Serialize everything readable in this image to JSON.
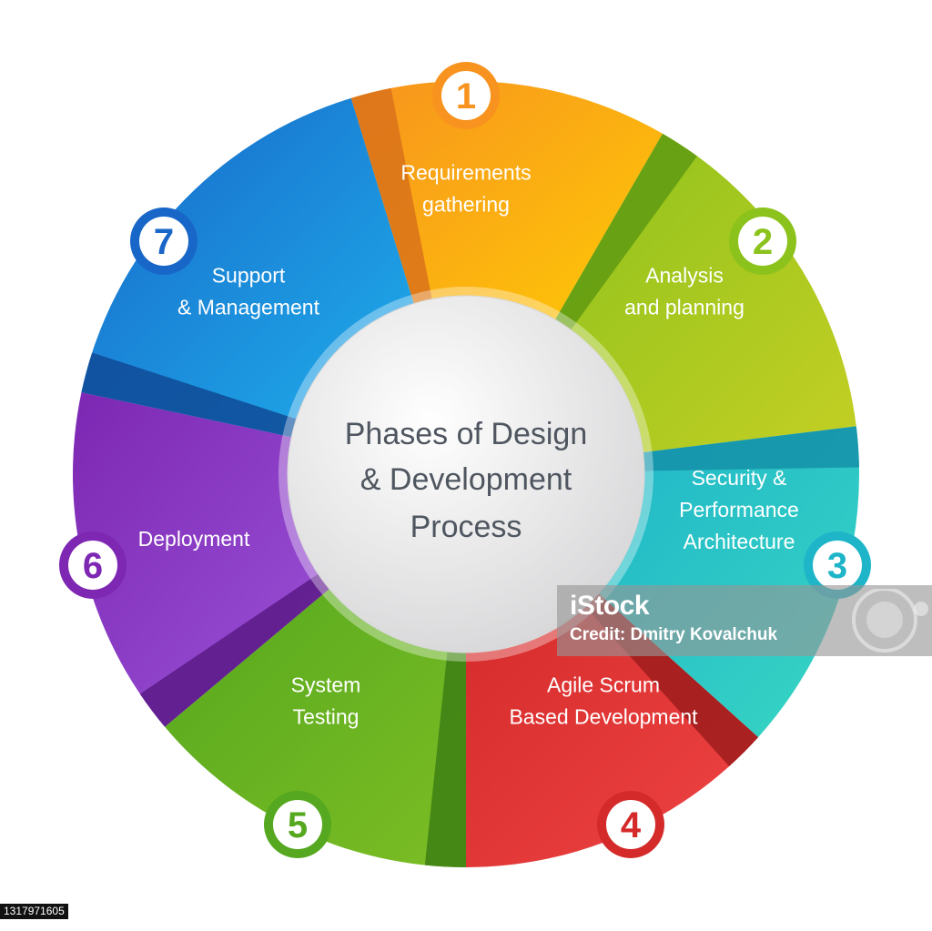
{
  "center_title": [
    "Phases of Design",
    "& Development",
    "Process"
  ],
  "phases": [
    {
      "number": "1",
      "label": [
        "Requirements",
        "gathering"
      ],
      "color": "#f7931e",
      "color_light": "#ffcb05",
      "color_dark": "#d9721a"
    },
    {
      "number": "2",
      "label": [
        "Analysis",
        "and planning"
      ],
      "color": "#8cc21c",
      "color_light": "#c4cf24",
      "color_dark": "#5f9a12"
    },
    {
      "number": "3",
      "label": [
        "Security &",
        "Performance",
        "Architecture"
      ],
      "color": "#1fb5c9",
      "color_light": "#38d6c3",
      "color_dark": "#1590a8"
    },
    {
      "number": "4",
      "label": [
        "Agile Scrum",
        "Based Development"
      ],
      "color": "#d42a2a",
      "color_light": "#f04444",
      "color_dark": "#9e1c1c"
    },
    {
      "number": "5",
      "label": [
        "System",
        "Testing"
      ],
      "color": "#55a81f",
      "color_light": "#7cbd24",
      "color_dark": "#3d7f14"
    },
    {
      "number": "6",
      "label": [
        "Deployment"
      ],
      "color": "#7d27b3",
      "color_light": "#9b55d9",
      "color_dark": "#5a1a86"
    },
    {
      "number": "7",
      "label": [
        "Support",
        "& Management"
      ],
      "color": "#1867c8",
      "color_light": "#1fb0ec",
      "color_dark": "#0f4a96"
    }
  ],
  "watermark": {
    "logo": "iStock",
    "credit": "Credit: Dmitry Kovalchuk"
  },
  "stock_id": "1317971605"
}
